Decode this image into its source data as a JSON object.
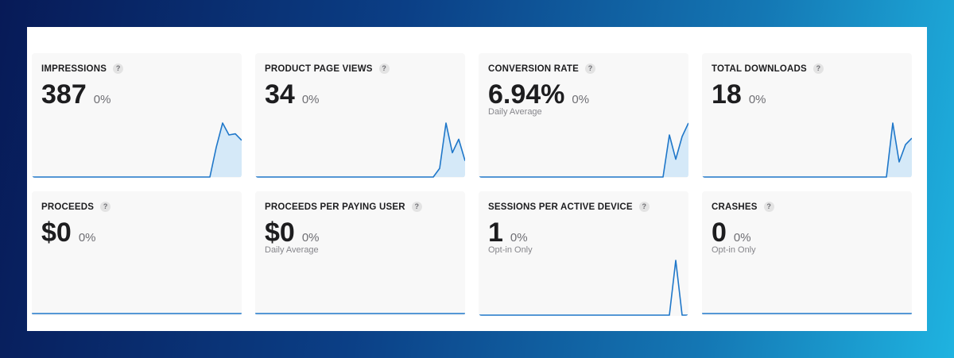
{
  "cards": [
    {
      "title": "IMPRESSIONS",
      "help": "?",
      "value": "387",
      "delta": "0%",
      "subtitle": "",
      "series": [
        0,
        0,
        0,
        0,
        0,
        0,
        0,
        0,
        0,
        0,
        0,
        0,
        0,
        0,
        0,
        0,
        0,
        0,
        0,
        0,
        0,
        0,
        0,
        0,
        0,
        0,
        0,
        0,
        0,
        0.55,
        1,
        0.78,
        0.8,
        0.68
      ]
    },
    {
      "title": "PRODUCT PAGE VIEWS",
      "help": "?",
      "value": "34",
      "delta": "0%",
      "subtitle": "",
      "series": [
        0,
        0,
        0,
        0,
        0,
        0,
        0,
        0,
        0,
        0,
        0,
        0,
        0,
        0,
        0,
        0,
        0,
        0,
        0,
        0,
        0,
        0,
        0,
        0,
        0,
        0,
        0,
        0,
        0,
        0.16,
        1,
        0.45,
        0.7,
        0.3
      ]
    },
    {
      "title": "CONVERSION RATE",
      "help": "?",
      "value": "6.94%",
      "delta": "0%",
      "subtitle": "Daily Average",
      "series": [
        0,
        0,
        0,
        0,
        0,
        0,
        0,
        0,
        0,
        0,
        0,
        0,
        0,
        0,
        0,
        0,
        0,
        0,
        0,
        0,
        0,
        0,
        0,
        0,
        0,
        0,
        0,
        0,
        0,
        0,
        0.78,
        0.33,
        0.75,
        1
      ]
    },
    {
      "title": "TOTAL DOWNLOADS",
      "help": "?",
      "value": "18",
      "delta": "0%",
      "subtitle": "",
      "series": [
        0,
        0,
        0,
        0,
        0,
        0,
        0,
        0,
        0,
        0,
        0,
        0,
        0,
        0,
        0,
        0,
        0,
        0,
        0,
        0,
        0,
        0,
        0,
        0,
        0,
        0,
        0,
        0,
        0,
        0,
        1,
        0.28,
        0.6,
        0.72
      ]
    },
    {
      "title": "PROCEEDS",
      "help": "?",
      "value": "$0",
      "delta": "0%",
      "subtitle": "",
      "series": [
        0,
        0,
        0,
        0,
        0,
        0,
        0,
        0,
        0,
        0,
        0,
        0,
        0,
        0,
        0,
        0,
        0,
        0,
        0,
        0,
        0,
        0,
        0,
        0,
        0,
        0,
        0,
        0,
        0,
        0,
        0,
        0,
        0,
        0
      ]
    },
    {
      "title": "PROCEEDS PER PAYING USER",
      "help": "?",
      "value": "$0",
      "delta": "0%",
      "subtitle": "Daily Average",
      "series": [
        0,
        0,
        0,
        0,
        0,
        0,
        0,
        0,
        0,
        0,
        0,
        0,
        0,
        0,
        0,
        0,
        0,
        0,
        0,
        0,
        0,
        0,
        0,
        0,
        0,
        0,
        0,
        0,
        0,
        0,
        0,
        0,
        0,
        0
      ]
    },
    {
      "title": "SESSIONS PER ACTIVE DEVICE",
      "help": "?",
      "value": "1",
      "delta": "0%",
      "subtitle": "Opt-in Only",
      "series": [
        0,
        0,
        0,
        0,
        0,
        0,
        0,
        0,
        0,
        0,
        0,
        0,
        0,
        0,
        0,
        0,
        0,
        0,
        0,
        0,
        0,
        0,
        0,
        0,
        0,
        0,
        0,
        0,
        0,
        0,
        0,
        1,
        0,
        0
      ]
    },
    {
      "title": "CRASHES",
      "help": "?",
      "value": "0",
      "delta": "0%",
      "subtitle": "Opt-in Only",
      "series": [
        0,
        0,
        0,
        0,
        0,
        0,
        0,
        0,
        0,
        0,
        0,
        0,
        0,
        0,
        0,
        0,
        0,
        0,
        0,
        0,
        0,
        0,
        0,
        0,
        0,
        0,
        0,
        0,
        0,
        0,
        0,
        0,
        0,
        0
      ]
    }
  ],
  "colors": {
    "line": "#1f77c9",
    "fill": "#cfe6f8",
    "card": "#f8f8f8"
  }
}
